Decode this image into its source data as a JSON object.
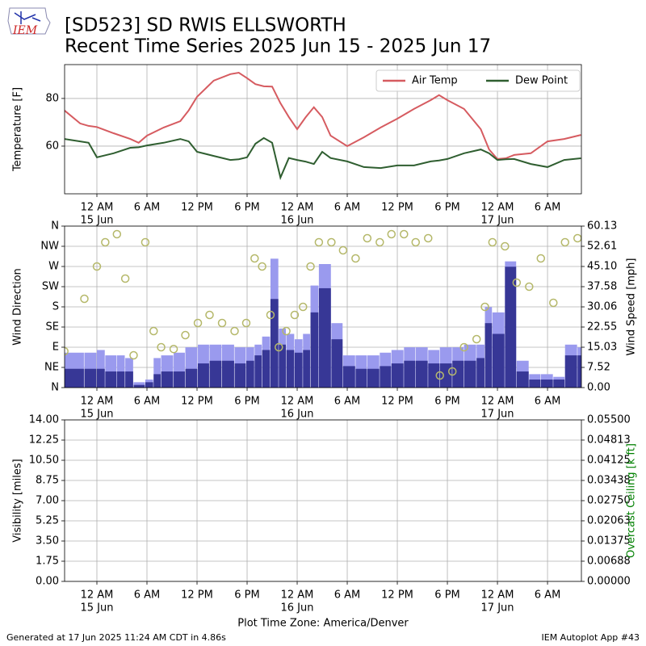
{
  "header": {
    "logo": "IEM",
    "title": "[SD523] SD RWIS ELLSWORTH",
    "subtitle": "Recent Time Series 2025 Jun 15 - 2025 Jun 17"
  },
  "footer": {
    "left": "Generated at 17 Jun 2025 11:24 AM CDT in 4.86s",
    "right": "IEM Autoplot App #43"
  },
  "chart_data": [
    {
      "type": "line",
      "ylabel": "Temperature [F]",
      "grid": true,
      "legend": "upper right",
      "xlim": [
        -3.87,
        58.06
      ],
      "ylim": [
        40,
        94.2
      ],
      "yticks": [
        60,
        80
      ],
      "xticks": [
        {
          "value": 0,
          "label": "12 AM"
        },
        {
          "value": 6,
          "label": "6 AM"
        },
        {
          "value": 12,
          "label": "12 PM"
        },
        {
          "value": 18,
          "label": "6 PM"
        },
        {
          "value": 24,
          "label": "12 AM"
        },
        {
          "value": 30,
          "label": "6 AM"
        },
        {
          "value": 36,
          "label": "12 PM"
        },
        {
          "value": 42,
          "label": "6 PM"
        },
        {
          "value": 48,
          "label": "12 AM"
        },
        {
          "value": 54,
          "label": "6 AM"
        }
      ],
      "xdates": [
        {
          "value": 0,
          "label": "15 Jun"
        },
        {
          "value": 24,
          "label": "16 Jun"
        },
        {
          "value": 48,
          "label": "17 Jun"
        }
      ],
      "x": [
        -3.9,
        -2,
        -1,
        0,
        2,
        4,
        5,
        6,
        8,
        10,
        11,
        12,
        14,
        16,
        17,
        18,
        19,
        20,
        21,
        22,
        23,
        24,
        25,
        26,
        27,
        28,
        30,
        32,
        34,
        36,
        38,
        40,
        41,
        42,
        44,
        46,
        47,
        48,
        49,
        50,
        52,
        54,
        56,
        58
      ],
      "series": [
        {
          "name": "Air Temp",
          "color": "#d65b60",
          "values": [
            75,
            69.5,
            68.5,
            68,
            65.4,
            63,
            61.4,
            64.4,
            67.8,
            70.5,
            75,
            80.7,
            87.5,
            90.2,
            90.8,
            88.5,
            86,
            85.1,
            85,
            78,
            72.2,
            67.1,
            72,
            76.3,
            72.2,
            64.4,
            60,
            63.7,
            67.8,
            71.5,
            75.6,
            79.3,
            81.4,
            79.3,
            75.6,
            67.1,
            58.6,
            54.6,
            54.9,
            56.3,
            57,
            62,
            63,
            64.7
          ]
        },
        {
          "name": "Dew Point",
          "color": "#2f5e30",
          "values": [
            63,
            62,
            61.4,
            55.3,
            57,
            59.3,
            59.5,
            60.3,
            61.4,
            63,
            62,
            57.6,
            55.9,
            54.2,
            54.5,
            55.3,
            61,
            63.4,
            61.4,
            46.8,
            55,
            54.2,
            53.5,
            52.5,
            57.6,
            55,
            53.6,
            51.2,
            50.8,
            51.9,
            51.9,
            53.6,
            54,
            54.6,
            57,
            58.6,
            57,
            54.2,
            54.5,
            54.6,
            52.5,
            51.2,
            54.2,
            54.9
          ]
        }
      ]
    },
    {
      "type": "combo",
      "ylabel": "Wind Direction",
      "y2label": "Wind Speed [mph]",
      "grid": true,
      "xlim": [
        -3.87,
        58.06
      ],
      "ylim": [
        0,
        360
      ],
      "y2lim": [
        0,
        60.13
      ],
      "yticks": [
        {
          "value": 0,
          "label": "N"
        },
        {
          "value": 45,
          "label": "NE"
        },
        {
          "value": 90,
          "label": "E"
        },
        {
          "value": 135,
          "label": "SE"
        },
        {
          "value": 180,
          "label": "S"
        },
        {
          "value": 225,
          "label": "SW"
        },
        {
          "value": 270,
          "label": "W"
        },
        {
          "value": 315,
          "label": "NW"
        },
        {
          "value": 360,
          "label": "N"
        }
      ],
      "y2ticks": [
        {
          "value": 0,
          "label": "0.00"
        },
        7.52,
        15.03,
        22.55,
        30.06,
        37.58,
        {
          "value": 45.1,
          "label": "45.10"
        },
        52.61,
        60.13
      ],
      "xticks": [
        {
          "value": 0,
          "label": "12 AM"
        },
        {
          "value": 6,
          "label": "6 AM"
        },
        {
          "value": 12,
          "label": "12 PM"
        },
        {
          "value": 18,
          "label": "6 PM"
        },
        {
          "value": 24,
          "label": "12 AM"
        },
        {
          "value": 30,
          "label": "6 AM"
        },
        {
          "value": 36,
          "label": "12 PM"
        },
        {
          "value": 42,
          "label": "6 PM"
        },
        {
          "value": 48,
          "label": "12 AM"
        },
        {
          "value": 54,
          "label": "6 AM"
        }
      ],
      "xdates": [
        {
          "value": 0,
          "label": "15 Jun"
        },
        {
          "value": 24,
          "label": "16 Jun"
        },
        {
          "value": 48,
          "label": "17 Jun"
        }
      ],
      "x": [
        -3.9,
        -1.5,
        0,
        1,
        2.4,
        3.4,
        4.4,
        5.8,
        6.8,
        7.7,
        9.2,
        10.6,
        12.1,
        13.5,
        15,
        16.5,
        17.9,
        18.9,
        19.8,
        20.8,
        21.8,
        22.7,
        23.7,
        24.7,
        25.6,
        26.6,
        28.1,
        29.5,
        31,
        32.4,
        33.9,
        35.3,
        36.8,
        38.2,
        39.7,
        41.1,
        42.6,
        44,
        45.5,
        46.5,
        47.4,
        48.9,
        50.3,
        51.8,
        53.2,
        54.7,
        56.1,
        57.6
      ],
      "series": [
        {
          "type": "bar",
          "axis": "y2",
          "color": "#9a9aee",
          "values": [
            13,
            13,
            14,
            12,
            12,
            11,
            2,
            3,
            11,
            12,
            13,
            15,
            16,
            16,
            16,
            15,
            15,
            16,
            19,
            48,
            22,
            20,
            18,
            20,
            38,
            46,
            24,
            12,
            12,
            12,
            13,
            14,
            15,
            15,
            14,
            15,
            15,
            16,
            16,
            30,
            28,
            47,
            10,
            5,
            5,
            4,
            16,
            15
          ]
        },
        {
          "type": "bar",
          "axis": "y2",
          "color": "#373796",
          "values": [
            7,
            7,
            7,
            6,
            6,
            6,
            1,
            2,
            5,
            6,
            6,
            7,
            9,
            10,
            10,
            9,
            10,
            12,
            14,
            33,
            16,
            14,
            13,
            14,
            28,
            37,
            18,
            8,
            7,
            7,
            8,
            9,
            10,
            10,
            9,
            9,
            10,
            10,
            11,
            24,
            20,
            45,
            6,
            3,
            3,
            3,
            12,
            12
          ]
        },
        {
          "type": "scatter",
          "color": "#b5b86a",
          "values": [
            81,
            198,
            270,
            324,
            342,
            243,
            72,
            324,
            126,
            90,
            86,
            117,
            144,
            162,
            144,
            126,
            144,
            288,
            270,
            162,
            90,
            126,
            162,
            180,
            270,
            324,
            324,
            306,
            288,
            333,
            324,
            342,
            342,
            324,
            333,
            27,
            36,
            90,
            108,
            180,
            324,
            315,
            234,
            225,
            288,
            189,
            324,
            333
          ]
        }
      ]
    },
    {
      "type": "line",
      "ylabel": "Visibility [miles]",
      "y2label": "Overcast Ceiling [k ft]",
      "y2label_color": "#008000",
      "grid": true,
      "xlabel": "Plot Time Zone: America/Denver",
      "xlim": [
        -3.87,
        58.06
      ],
      "ylim": [
        0,
        14
      ],
      "y2lim": [
        0,
        0.055
      ],
      "yticks": [
        {
          "value": 0,
          "label": "0.00"
        },
        1.75,
        {
          "value": 3.5,
          "label": "3.50"
        },
        5.25,
        {
          "value": 7,
          "label": "7.00"
        },
        8.75,
        {
          "value": 10.5,
          "label": "10.50"
        },
        12.25,
        {
          "value": 14,
          "label": "14.00"
        }
      ],
      "y2ticks": [
        {
          "value": 0,
          "label": "0.00000"
        },
        0.00688,
        0.01375,
        0.02063,
        {
          "value": 0.0275,
          "label": "0.02750"
        },
        0.03438,
        0.04125,
        0.04813,
        {
          "value": 0.055,
          "label": "0.05500"
        }
      ],
      "xticks": [
        {
          "value": 0,
          "label": "12 AM"
        },
        {
          "value": 6,
          "label": "6 AM"
        },
        {
          "value": 12,
          "label": "12 PM"
        },
        {
          "value": 18,
          "label": "6 PM"
        },
        {
          "value": 24,
          "label": "12 AM"
        },
        {
          "value": 30,
          "label": "6 AM"
        },
        {
          "value": 36,
          "label": "12 PM"
        },
        {
          "value": 42,
          "label": "6 PM"
        },
        {
          "value": 48,
          "label": "12 AM"
        },
        {
          "value": 54,
          "label": "6 AM"
        }
      ],
      "xdates": [
        {
          "value": 0,
          "label": "15 Jun"
        },
        {
          "value": 24,
          "label": "16 Jun"
        },
        {
          "value": 48,
          "label": "17 Jun"
        }
      ],
      "series": []
    }
  ]
}
